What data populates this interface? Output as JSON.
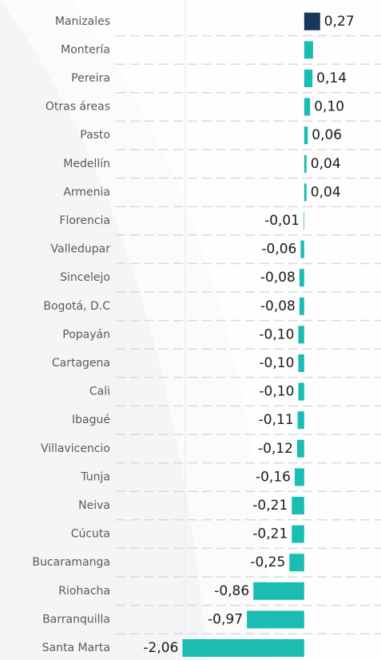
{
  "chart_data": {
    "type": "barh",
    "categories": [
      "Manizales",
      "Montería",
      "Pereira",
      "Otras áreas",
      "Pasto",
      "Medellín",
      "Armenia",
      "Florencia",
      "Valledupar",
      "Sincelejo",
      "Bogotá, D.C",
      "Popayán",
      "Cartagena",
      "Cali",
      "Ibagué",
      "Villavicencio",
      "Tunja",
      "Neiva",
      "Cúcuta",
      "Bucaramanga",
      "Riohacha",
      "Barranquilla",
      "Santa Marta"
    ],
    "values": [
      0.27,
      0.15,
      0.14,
      0.1,
      0.06,
      0.04,
      0.04,
      -0.01,
      -0.06,
      -0.08,
      -0.08,
      -0.1,
      -0.1,
      -0.1,
      -0.11,
      -0.12,
      -0.16,
      -0.21,
      -0.21,
      -0.25,
      -0.86,
      -0.97,
      -2.06
    ],
    "value_labels": [
      "0,27",
      null,
      "0,14",
      "0,10",
      "0,06",
      "0,04",
      "0,04",
      "-0,01",
      "-0,06",
      "-0,08",
      "-0,08",
      "-0,10",
      "-0,10",
      "-0,10",
      "-0,11",
      "-0,12",
      "-0,16",
      "-0,21",
      "-0,21",
      "-0,25",
      "-0,86",
      "-0,97",
      "-2,06"
    ],
    "colors": [
      "#17375e",
      "#1bbdb2",
      "#1bbdb2",
      "#1bbdb2",
      "#1bbdb2",
      "#1bbdb2",
      "#1bbdb2",
      "#1bbdb2",
      "#1bbdb2",
      "#1bbdb2",
      "#1bbdb2",
      "#1bbdb2",
      "#1bbdb2",
      "#1bbdb2",
      "#1bbdb2",
      "#1bbdb2",
      "#1bbdb2",
      "#1bbdb2",
      "#1bbdb2",
      "#1bbdb2",
      "#1bbdb2",
      "#1bbdb2",
      "#1bbdb2"
    ],
    "xlim": [
      -3.12,
      1.3
    ],
    "grid": true
  }
}
